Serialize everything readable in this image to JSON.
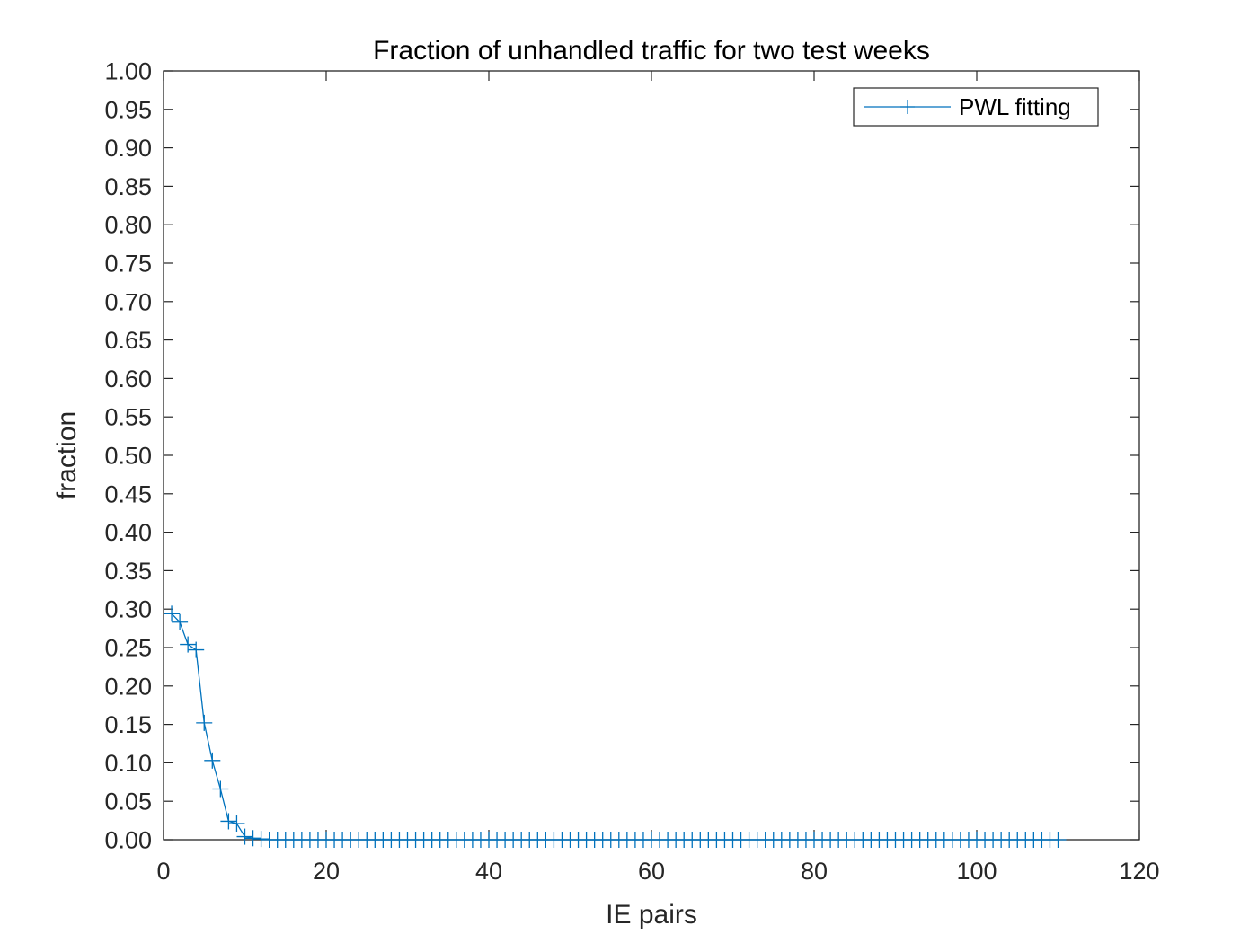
{
  "chart_data": {
    "type": "line",
    "title": "Fraction of unhandled traffic for two test weeks",
    "xlabel": "IE pairs",
    "ylabel": "fraction",
    "xlim": [
      0,
      120
    ],
    "ylim": [
      0,
      1
    ],
    "x_ticks": [
      "0",
      "20",
      "40",
      "60",
      "80",
      "100",
      "120"
    ],
    "y_ticks": [
      "0.00",
      "0.05",
      "0.10",
      "0.15",
      "0.20",
      "0.25",
      "0.30",
      "0.35",
      "0.40",
      "0.45",
      "0.50",
      "0.55",
      "0.60",
      "0.65",
      "0.70",
      "0.75",
      "0.80",
      "0.85",
      "0.90",
      "0.95",
      "1.00"
    ],
    "grid": false,
    "legend_position": "top-right",
    "series": [
      {
        "name": "PWL fitting",
        "color": "#0072BD",
        "marker": "plus",
        "x": [
          1,
          2,
          3,
          4,
          5,
          6,
          7,
          8,
          9,
          10,
          11,
          12,
          13,
          14,
          15,
          16,
          17,
          18,
          19,
          20,
          21,
          22,
          23,
          24,
          25,
          26,
          27,
          28,
          29,
          30,
          31,
          32,
          33,
          34,
          35,
          36,
          37,
          38,
          39,
          40,
          41,
          42,
          43,
          44,
          45,
          46,
          47,
          48,
          49,
          50,
          51,
          52,
          53,
          54,
          55,
          56,
          57,
          58,
          59,
          60,
          61,
          62,
          63,
          64,
          65,
          66,
          67,
          68,
          69,
          70,
          71,
          72,
          73,
          74,
          75,
          76,
          77,
          78,
          79,
          80,
          81,
          82,
          83,
          84,
          85,
          86,
          87,
          88,
          89,
          90,
          91,
          92,
          93,
          94,
          95,
          96,
          97,
          98,
          99,
          100,
          101,
          102,
          103,
          104,
          105,
          106,
          107,
          108,
          109,
          110
        ],
        "y": [
          0.294,
          0.283,
          0.254,
          0.247,
          0.152,
          0.103,
          0.066,
          0.024,
          0.021,
          0.004,
          0.002,
          0.001,
          0,
          0,
          0,
          0,
          0,
          0,
          0,
          0,
          0,
          0,
          0,
          0,
          0,
          0,
          0,
          0,
          0,
          0,
          0,
          0,
          0,
          0,
          0,
          0,
          0,
          0,
          0,
          0,
          0,
          0,
          0,
          0,
          0,
          0,
          0,
          0,
          0,
          0,
          0,
          0,
          0,
          0,
          0,
          0,
          0,
          0,
          0,
          0,
          0,
          0,
          0,
          0,
          0,
          0,
          0,
          0,
          0,
          0,
          0,
          0,
          0,
          0,
          0,
          0,
          0,
          0,
          0,
          0,
          0,
          0,
          0,
          0,
          0,
          0,
          0,
          0,
          0,
          0,
          0,
          0,
          0,
          0,
          0,
          0,
          0,
          0,
          0,
          0,
          0,
          0,
          0,
          0,
          0,
          0,
          0,
          0,
          0,
          0
        ]
      }
    ]
  }
}
